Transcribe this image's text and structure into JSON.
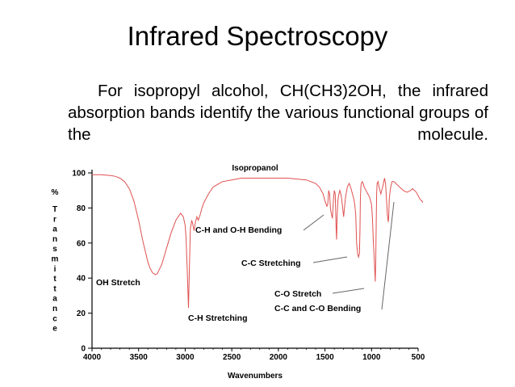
{
  "slide": {
    "title": "Infrared Spectroscopy",
    "body": "For isopropyl alcohol, CH(CH3)2OH, the infrared absorption bands identify the various functional groups of the molecule."
  },
  "chart_data": {
    "type": "line",
    "title": "Isopropanol",
    "xlabel": "Wavenumbers",
    "ylabel": "% Transmittance",
    "ylabel_unit": "%",
    "ylabel_letters": [
      "T",
      "r",
      "a",
      "n",
      "s",
      "m",
      "i",
      "t",
      "t",
      "a",
      "n",
      "c",
      "e"
    ],
    "xlim": [
      4000,
      450
    ],
    "ylim": [
      0,
      100
    ],
    "xticks": [
      4000,
      3500,
      3000,
      2500,
      2000,
      1500,
      1000,
      500
    ],
    "yticks": [
      0,
      20,
      40,
      60,
      80,
      100
    ],
    "line_color": "#e05050",
    "grid": false,
    "series": [
      {
        "x": [
          4000,
          3900,
          3800,
          3750,
          3700,
          3650,
          3600,
          3550,
          3500,
          3450,
          3400,
          3380,
          3350,
          3320,
          3300,
          3250,
          3200,
          3150,
          3100,
          3050,
          3020,
          3000,
          2990,
          2975,
          2965,
          2955,
          2945,
          2930,
          2920,
          2905,
          2890,
          2875,
          2860,
          2840,
          2820,
          2800,
          2750,
          2700,
          2600,
          2500,
          2400,
          2300,
          2200,
          2100,
          2000,
          1900,
          1800,
          1700,
          1600,
          1560,
          1520,
          1500,
          1480,
          1470,
          1460,
          1450,
          1440,
          1420,
          1410,
          1400,
          1390,
          1380,
          1375,
          1370,
          1360,
          1350,
          1340,
          1330,
          1320,
          1310,
          1300,
          1280,
          1260,
          1240,
          1220,
          1200,
          1190,
          1180,
          1170,
          1160,
          1150,
          1140,
          1130,
          1125,
          1120,
          1115,
          1110,
          1100,
          1090,
          1080,
          1060,
          1040,
          1020,
          1000,
          990,
          980,
          970,
          960,
          955,
          950,
          945,
          940,
          930,
          920,
          900,
          880,
          860,
          850,
          840,
          830,
          820,
          815,
          810,
          800,
          790,
          780,
          760,
          740,
          720,
          700,
          680,
          660,
          640,
          620,
          600,
          580,
          560,
          540,
          520,
          500,
          480,
          460,
          450
        ],
        "y": [
          99,
          99,
          98.5,
          98,
          97,
          95,
          91,
          84,
          73,
          60,
          49,
          46,
          43,
          42,
          42.5,
          48,
          57,
          66,
          73,
          77,
          75,
          70,
          62,
          40,
          23,
          45,
          68,
          73,
          71,
          67,
          72,
          75,
          73,
          76,
          80,
          83,
          88,
          92,
          95,
          96,
          97,
          97,
          97,
          97,
          97,
          97,
          96.5,
          96,
          94,
          92,
          88,
          84,
          81,
          82,
          90,
          88,
          79,
          74,
          84,
          90,
          88,
          68,
          62,
          75,
          85,
          88,
          90,
          88,
          85,
          80,
          75,
          86,
          92,
          94,
          91,
          87,
          85,
          82,
          76,
          60,
          54,
          52,
          54,
          66,
          84,
          92,
          94,
          95,
          94,
          92,
          90,
          88,
          86,
          82,
          74,
          60,
          50,
          38,
          50,
          72,
          88,
          94,
          95,
          92,
          88,
          92,
          97,
          94,
          85,
          76,
          72,
          76,
          85,
          90,
          93,
          95,
          95,
          94,
          93,
          92,
          91,
          90,
          89.5,
          89,
          89.5,
          90,
          91,
          90,
          89,
          87,
          85,
          84,
          83
        ]
      }
    ],
    "annotations": [
      {
        "text": "OH Stretch",
        "x": 3350,
        "y": 42
      },
      {
        "text": "C-H Stretching",
        "x": 2965,
        "y": 23
      },
      {
        "text": "C-H and O-H Bending",
        "x": 1440,
        "y": 76
      },
      {
        "text": "C-C Stretching",
        "x": 1140,
        "y": 52
      },
      {
        "text": "C-O Stretch",
        "x": 955,
        "y": 38
      },
      {
        "text": "C-C and C-O Bending",
        "x": 690,
        "y": 90
      }
    ]
  }
}
